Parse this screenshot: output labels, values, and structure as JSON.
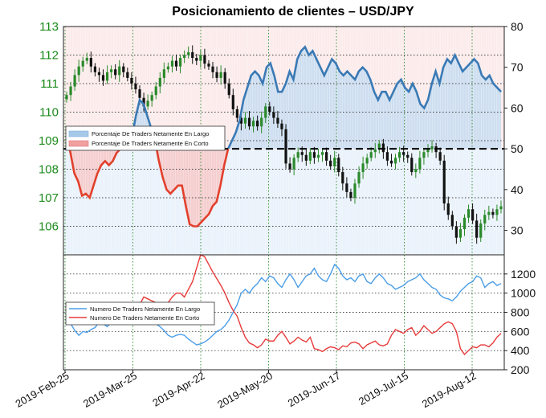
{
  "chart_data": [
    {
      "type": "area",
      "title": "Posicionamiento de clientes – USD/JPY",
      "left_axis": {
        "ylim": [
          105,
          113
        ],
        "ticks": [
          "106",
          "107",
          "108",
          "109",
          "110",
          "111",
          "112",
          "113"
        ],
        "color": "#1a8a1a"
      },
      "right_axis": {
        "ylim": [
          24,
          80
        ],
        "ticks": [
          "30",
          "40",
          "50",
          "60",
          "70",
          "80"
        ],
        "reference_line": 50
      },
      "x_ticks": [
        "2019-Feb-25",
        "2019-Mar-25",
        "2019-Apr-22",
        "2019-May-20",
        "2019-Jun-17",
        "2019-Jul-15",
        "2019-Aug-12"
      ],
      "legend": [
        {
          "label": "Porcentaje De Traders Netamente En Largo",
          "color": "#a8c8e8"
        },
        {
          "label": "Porcentaje De Traders Netamente En Corto",
          "color": "#f0a0a0"
        }
      ],
      "series": [
        {
          "name": "Porcentaje De Traders Netamente En Largo",
          "axis": "right",
          "color": "#3a7ab5",
          "above_50_color": "#e2402c",
          "values": [
            53,
            49,
            44,
            42,
            38.5,
            39,
            38,
            41,
            44,
            46,
            47,
            46,
            47,
            49,
            50,
            50,
            51,
            53,
            58,
            62,
            61,
            58,
            55,
            52,
            47,
            43,
            40,
            39,
            40,
            41,
            41,
            36,
            31.5,
            31,
            31,
            32,
            33,
            34,
            36,
            37,
            41,
            46,
            50,
            52,
            54,
            57,
            62,
            65,
            68,
            69,
            68,
            66,
            70,
            71,
            68,
            64,
            64,
            66,
            69,
            67,
            72,
            74,
            75,
            73,
            74,
            72,
            70,
            68,
            70,
            72,
            71,
            69,
            68,
            69,
            68,
            67,
            69,
            70,
            69,
            67,
            64,
            62,
            64,
            64,
            62,
            64,
            66,
            67,
            65,
            64,
            66,
            64,
            61,
            60,
            62,
            66,
            69,
            66,
            70,
            72,
            71,
            73,
            71,
            69,
            70,
            71,
            72,
            71,
            68,
            67,
            68,
            66,
            65,
            64
          ]
        },
        {
          "name": "USD/JPY",
          "axis": "left",
          "type": "candlestick",
          "closes": [
            110.6,
            110.9,
            111.3,
            111.6,
            111.8,
            111.9,
            111.6,
            111.4,
            111.3,
            111.1,
            111.4,
            111.5,
            111.3,
            111.6,
            111.4,
            111.2,
            111.0,
            110.8,
            110.5,
            110.2,
            110.4,
            110.6,
            110.9,
            111.2,
            111.5,
            111.6,
            111.8,
            111.6,
            111.9,
            112.0,
            112.1,
            111.9,
            111.8,
            112.0,
            111.7,
            111.6,
            111.4,
            111.2,
            111.4,
            111.0,
            110.6,
            110.1,
            109.8,
            109.6,
            109.8,
            109.5,
            109.7,
            109.5,
            109.8,
            110.2,
            110.0,
            109.8,
            109.6,
            109.4,
            108.2,
            108.0,
            108.4,
            108.6,
            108.5,
            108.3,
            108.6,
            108.4,
            108.5,
            108.6,
            108.3,
            108.1,
            108.4,
            107.9,
            107.5,
            107.2,
            107.0,
            107.5,
            107.9,
            108.2,
            108.4,
            108.6,
            108.7,
            108.9,
            108.6,
            108.3,
            108.2,
            108.4,
            108.6,
            108.5,
            108.4,
            107.9,
            108.0,
            108.4,
            108.6,
            108.7,
            108.8,
            108.6,
            108.3,
            106.8,
            106.4,
            106.0,
            105.6,
            105.9,
            106.3,
            106.6,
            106.2,
            105.6,
            106.1,
            106.4,
            106.5,
            106.4,
            106.6,
            106.7
          ]
        }
      ]
    },
    {
      "type": "line",
      "left_axis": {
        "ylim": [
          200,
          1400
        ],
        "ticks": [
          "200",
          "400",
          "600",
          "800",
          "1000",
          "1200"
        ]
      },
      "legend": [
        {
          "label": "Numero De Traders Netamente En Largo",
          "color": "#4a9de8"
        },
        {
          "label": "Numero De Traders Netamente En Corto",
          "color": "#e83a3a"
        }
      ],
      "series": [
        {
          "name": "Numero De Traders Netamente En Largo",
          "color": "#4a9de8",
          "values": [
            740,
            680,
            610,
            560,
            600,
            590,
            620,
            640,
            700,
            680,
            650,
            700,
            720,
            690,
            750,
            810,
            760,
            680,
            700,
            760,
            800,
            760,
            680,
            650,
            610,
            560,
            540,
            560,
            570,
            560,
            520,
            490,
            460,
            470,
            490,
            520,
            560,
            600,
            620,
            660,
            720,
            800,
            880,
            1000,
            1040,
            1000,
            1060,
            1100,
            1160,
            1120,
            1180,
            1160,
            1100,
            1060,
            1140,
            1200,
            1140,
            1060,
            1120,
            1180,
            1200,
            1260,
            1180,
            1140,
            1120,
            1200,
            1300,
            1260,
            1180,
            1140,
            1160,
            1120,
            1180,
            1200,
            1120,
            1100,
            1160,
            1200,
            1160,
            1100,
            1080,
            1040,
            1060,
            1080,
            1120,
            1140,
            1160,
            1200,
            1140,
            1100,
            1060,
            1040,
            980,
            950,
            940,
            920,
            960,
            1020,
            1060,
            1100,
            1120,
            1180,
            1160,
            1060,
            1100,
            1120,
            1080,
            1100
          ]
        },
        {
          "name": "Numero De Traders Netamente En Corto",
          "color": "#e83a3a",
          "values": [
            700,
            710,
            680,
            720,
            750,
            790,
            810,
            820,
            800,
            780,
            760,
            790,
            780,
            740,
            780,
            790,
            810,
            830,
            880,
            960,
            940,
            920,
            900,
            860,
            840,
            900,
            960,
            1000,
            1000,
            960,
            1040,
            1120,
            1260,
            1400,
            1380,
            1300,
            1220,
            1150,
            1080,
            1000,
            900,
            820,
            760,
            640,
            540,
            480,
            460,
            430,
            460,
            520,
            500,
            500,
            560,
            600,
            540,
            470,
            500,
            540,
            510,
            490,
            540,
            420,
            410,
            390,
            420,
            440,
            430,
            410,
            450,
            440,
            480,
            490,
            470,
            420,
            460,
            480,
            500,
            460,
            450,
            470,
            560,
            620,
            600,
            580,
            620,
            640,
            560,
            600,
            660,
            620,
            580,
            600,
            640,
            680,
            700,
            680,
            600,
            420,
            360,
            400,
            440,
            430,
            460,
            460,
            440,
            480,
            540,
            580
          ]
        }
      ]
    }
  ]
}
